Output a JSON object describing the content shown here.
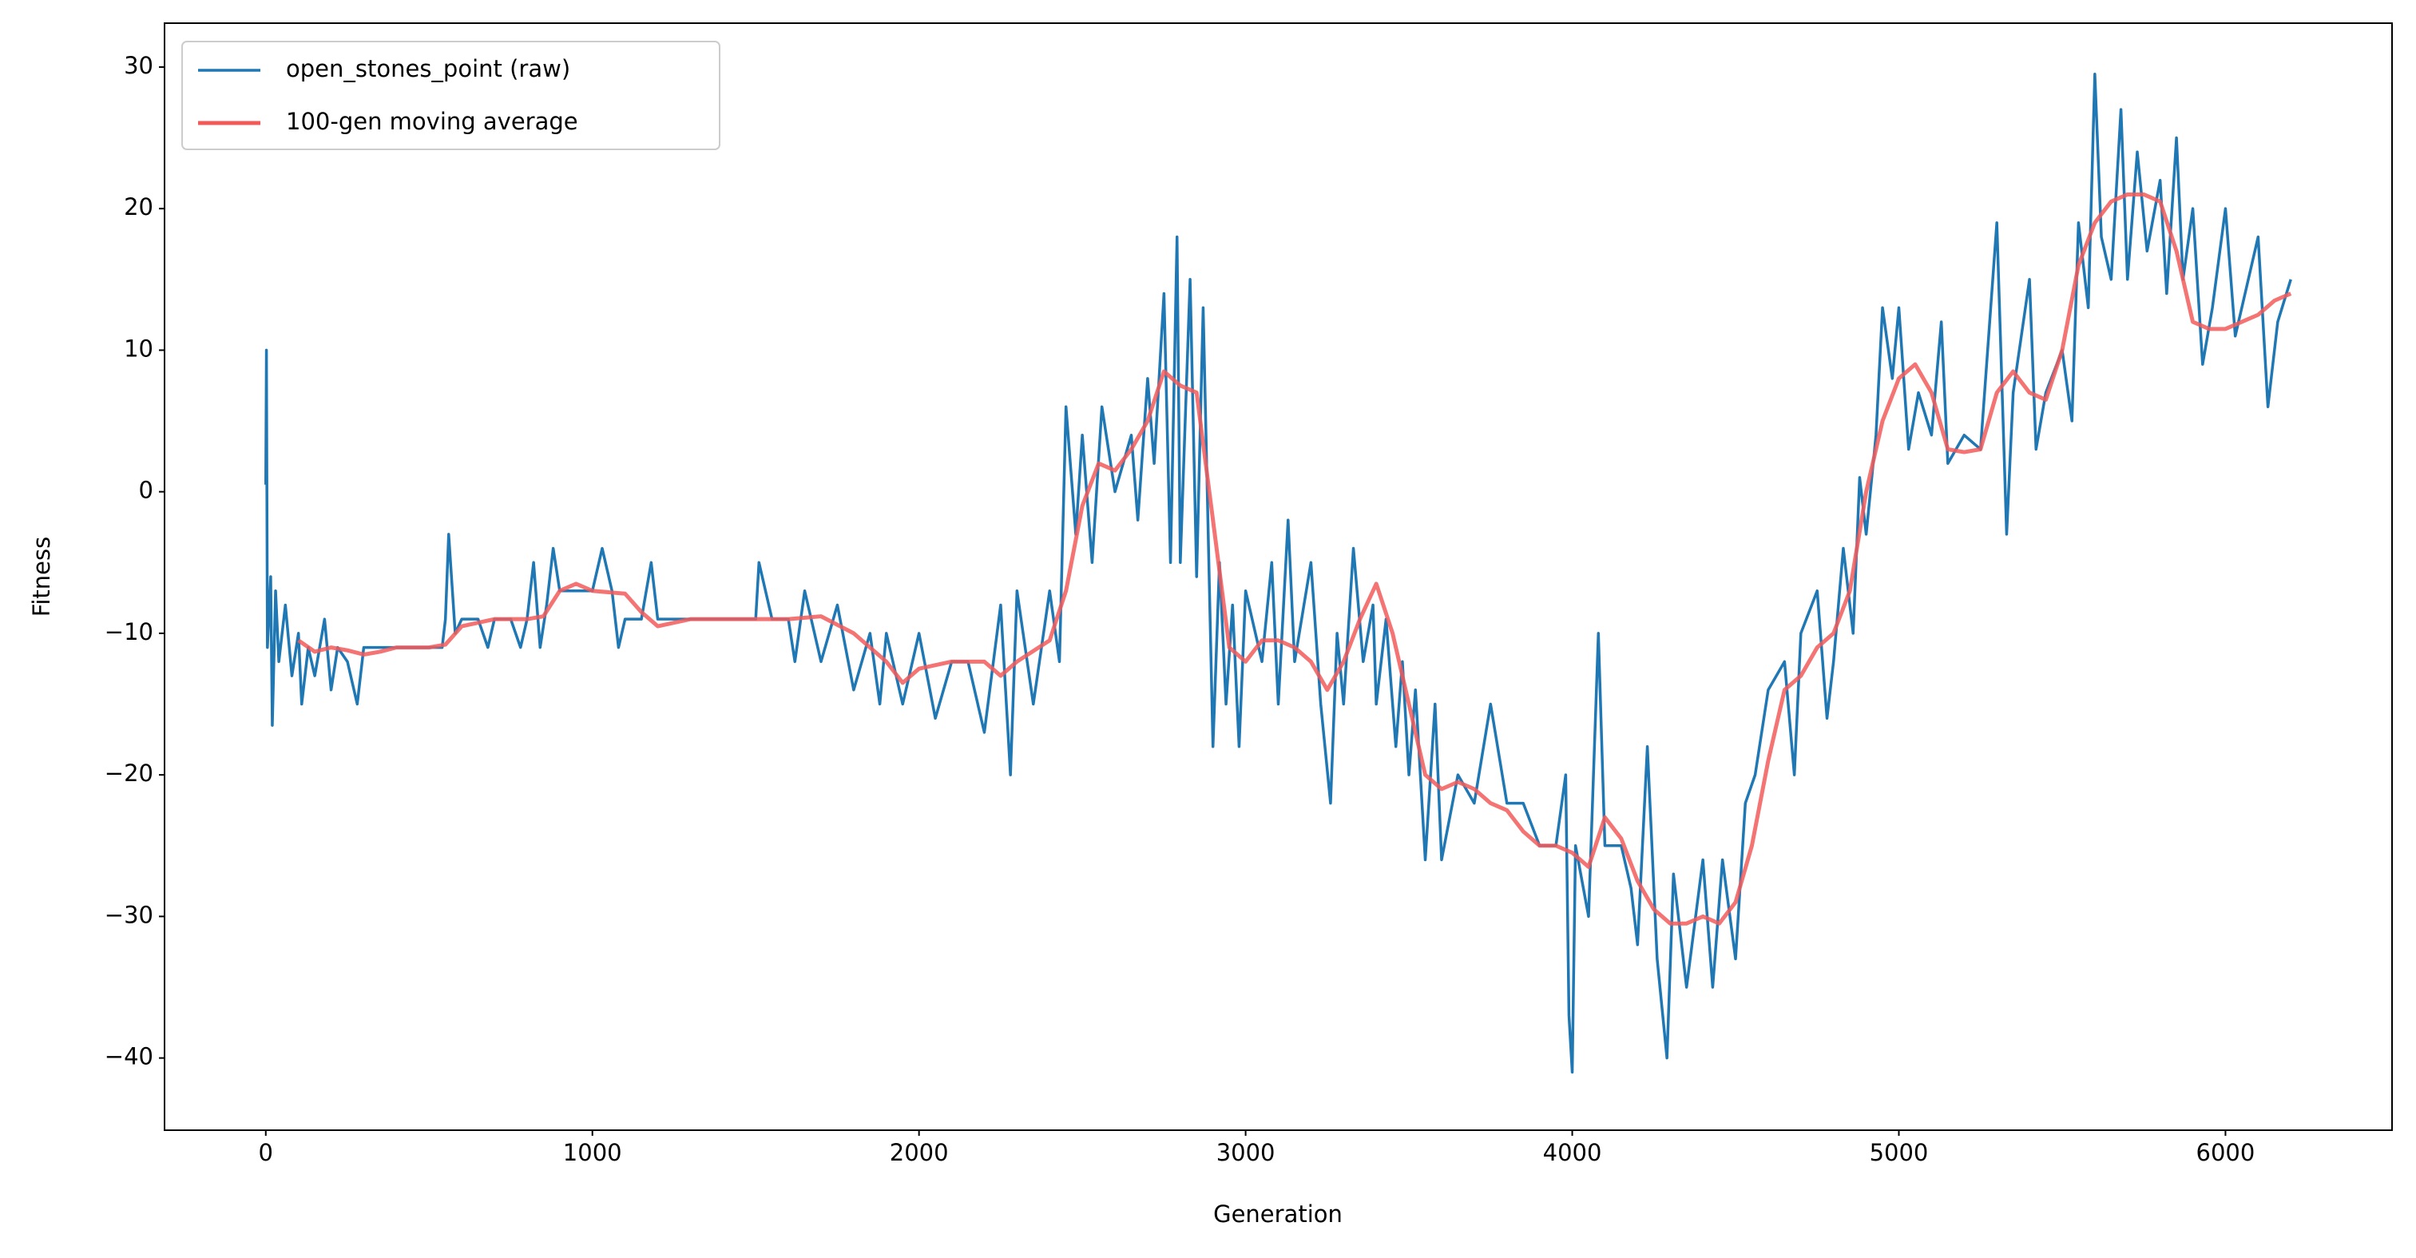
{
  "chart_data": {
    "type": "line",
    "xlabel": "Generation",
    "ylabel": "Fitness",
    "xlim": [
      -310,
      6510
    ],
    "ylim": [
      -45.1,
      33.1
    ],
    "xticks": [
      0,
      1000,
      2000,
      3000,
      4000,
      5000,
      6000
    ],
    "yticks": [
      {
        "value": -40,
        "label": "−40"
      },
      {
        "value": -30,
        "label": "−30"
      },
      {
        "value": -20,
        "label": "−20"
      },
      {
        "value": -10,
        "label": "−10"
      },
      0,
      10,
      20,
      30
    ],
    "legend": "upper left",
    "grid": false,
    "series": [
      {
        "name": "open_stones_point (raw)",
        "color": "#1f77b4",
        "x": [
          0,
          2,
          5,
          15,
          20,
          30,
          40,
          60,
          80,
          100,
          110,
          130,
          150,
          180,
          200,
          220,
          250,
          280,
          300,
          350,
          400,
          450,
          500,
          540,
          550,
          560,
          580,
          600,
          650,
          680,
          700,
          750,
          780,
          800,
          820,
          840,
          860,
          880,
          900,
          950,
          1000,
          1030,
          1060,
          1080,
          1100,
          1150,
          1180,
          1200,
          1250,
          1300,
          1400,
          1500,
          1510,
          1550,
          1600,
          1620,
          1650,
          1700,
          1750,
          1800,
          1850,
          1880,
          1900,
          1950,
          2000,
          2050,
          2100,
          2150,
          2200,
          2250,
          2280,
          2300,
          2350,
          2400,
          2430,
          2450,
          2480,
          2500,
          2530,
          2560,
          2600,
          2650,
          2670,
          2700,
          2720,
          2750,
          2770,
          2790,
          2800,
          2830,
          2850,
          2870,
          2900,
          2920,
          2940,
          2960,
          2980,
          3000,
          3050,
          3080,
          3100,
          3130,
          3150,
          3200,
          3230,
          3260,
          3280,
          3300,
          3330,
          3360,
          3390,
          3400,
          3430,
          3460,
          3480,
          3500,
          3520,
          3550,
          3580,
          3600,
          3650,
          3700,
          3750,
          3800,
          3850,
          3900,
          3950,
          3980,
          3990,
          4000,
          4010,
          4050,
          4080,
          4100,
          4150,
          4180,
          4200,
          4230,
          4260,
          4290,
          4310,
          4350,
          4400,
          4430,
          4460,
          4500,
          4530,
          4560,
          4600,
          4650,
          4680,
          4700,
          4750,
          4780,
          4800,
          4830,
          4860,
          4880,
          4900,
          4930,
          4950,
          4980,
          5000,
          5030,
          5060,
          5100,
          5130,
          5150,
          5200,
          5250,
          5300,
          5330,
          5350,
          5400,
          5420,
          5450,
          5500,
          5530,
          5550,
          5580,
          5600,
          5620,
          5650,
          5680,
          5700,
          5730,
          5760,
          5800,
          5820,
          5850,
          5870,
          5900,
          5930,
          5960,
          6000,
          6030,
          6060,
          6100,
          6130,
          6160,
          6200
        ],
        "values": [
          0.5,
          10,
          -11,
          -6,
          -16.5,
          -7,
          -12,
          -8,
          -13,
          -10,
          -15,
          -11,
          -13,
          -9,
          -14,
          -11,
          -12,
          -15,
          -11,
          -11,
          -11,
          -11,
          -11,
          -11,
          -9,
          -3,
          -10,
          -9,
          -9,
          -11,
          -9,
          -9,
          -11,
          -9,
          -5,
          -11,
          -8,
          -4,
          -7,
          -7,
          -7,
          -4,
          -7,
          -11,
          -9,
          -9,
          -5,
          -9,
          -9,
          -9,
          -9,
          -9,
          -5,
          -9,
          -9,
          -12,
          -7,
          -12,
          -8,
          -14,
          -10,
          -15,
          -10,
          -15,
          -10,
          -16,
          -12,
          -12,
          -17,
          -8,
          -20,
          -7,
          -15,
          -7,
          -12,
          6,
          -3,
          4,
          -5,
          6,
          0,
          4,
          -2,
          8,
          2,
          14,
          -5,
          18,
          -5,
          15,
          -6,
          13,
          -18,
          -5,
          -15,
          -8,
          -18,
          -7,
          -12,
          -5,
          -15,
          -2,
          -12,
          -5,
          -15,
          -22,
          -10,
          -15,
          -4,
          -12,
          -8,
          -15,
          -9,
          -18,
          -12,
          -20,
          -14,
          -26,
          -15,
          -26,
          -20,
          -22,
          -15,
          -22,
          -22,
          -25,
          -25,
          -20,
          -37,
          -41,
          -25,
          -30,
          -10,
          -25,
          -25,
          -28,
          -32,
          -18,
          -33,
          -40,
          -27,
          -35,
          -26,
          -35,
          -26,
          -33,
          -22,
          -20,
          -14,
          -12,
          -20,
          -10,
          -7,
          -16,
          -12,
          -4,
          -10,
          1,
          -3,
          4,
          13,
          8,
          13,
          3,
          7,
          4,
          12,
          2,
          4,
          3,
          19,
          -3,
          7,
          15,
          3,
          7,
          10,
          5,
          19,
          13,
          29.5,
          18,
          15,
          27,
          15,
          24,
          17,
          22,
          14,
          25,
          15,
          20,
          9,
          13,
          20,
          11,
          14,
          18,
          6,
          12,
          15
        ]
      },
      {
        "name": "100-gen moving average",
        "color": "#f25a5a",
        "x": [
          100,
          150,
          200,
          250,
          300,
          350,
          400,
          500,
          550,
          600,
          700,
          800,
          850,
          900,
          950,
          1000,
          1100,
          1150,
          1200,
          1300,
          1400,
          1500,
          1600,
          1700,
          1800,
          1900,
          1950,
          2000,
          2100,
          2200,
          2250,
          2300,
          2400,
          2450,
          2500,
          2550,
          2600,
          2650,
          2700,
          2750,
          2800,
          2850,
          2900,
          2950,
          3000,
          3050,
          3100,
          3150,
          3200,
          3250,
          3300,
          3350,
          3400,
          3450,
          3500,
          3550,
          3600,
          3650,
          3700,
          3750,
          3800,
          3850,
          3900,
          3950,
          4000,
          4050,
          4100,
          4150,
          4200,
          4250,
          4300,
          4350,
          4400,
          4450,
          4500,
          4550,
          4600,
          4650,
          4700,
          4750,
          4800,
          4850,
          4900,
          4950,
          5000,
          5050,
          5100,
          5150,
          5200,
          5250,
          5300,
          5350,
          5400,
          5450,
          5500,
          5550,
          5600,
          5650,
          5700,
          5750,
          5800,
          5850,
          5900,
          5950,
          6000,
          6050,
          6100,
          6150,
          6200
        ],
        "values": [
          -10.5,
          -11.3,
          -11,
          -11.2,
          -11.5,
          -11.3,
          -11,
          -11,
          -10.8,
          -9.5,
          -9,
          -9,
          -8.8,
          -7,
          -6.5,
          -7,
          -7.2,
          -8.5,
          -9.5,
          -9,
          -9,
          -9,
          -9,
          -8.8,
          -10,
          -12,
          -13.5,
          -12.5,
          -12,
          -12,
          -13,
          -12,
          -10.5,
          -7,
          -1,
          2,
          1.5,
          3,
          5,
          8.5,
          7.5,
          7,
          -2,
          -11,
          -12,
          -10.5,
          -10.5,
          -11,
          -12,
          -14,
          -12,
          -9,
          -6.5,
          -10,
          -15,
          -20,
          -21,
          -20.5,
          -21,
          -22,
          -22.5,
          -24,
          -25,
          -25,
          -25.5,
          -26.5,
          -23,
          -24.5,
          -27.5,
          -29.5,
          -30.5,
          -30.5,
          -30,
          -30.5,
          -29,
          -25,
          -19,
          -14,
          -13,
          -11,
          -10,
          -7,
          0,
          5,
          8,
          9,
          7,
          3,
          2.8,
          3,
          7,
          8.5,
          7,
          6.5,
          10,
          16,
          19,
          20.5,
          21,
          21,
          20.5,
          17,
          12,
          11.5,
          11.5,
          12,
          12.5,
          13.5,
          14
        ]
      }
    ]
  }
}
